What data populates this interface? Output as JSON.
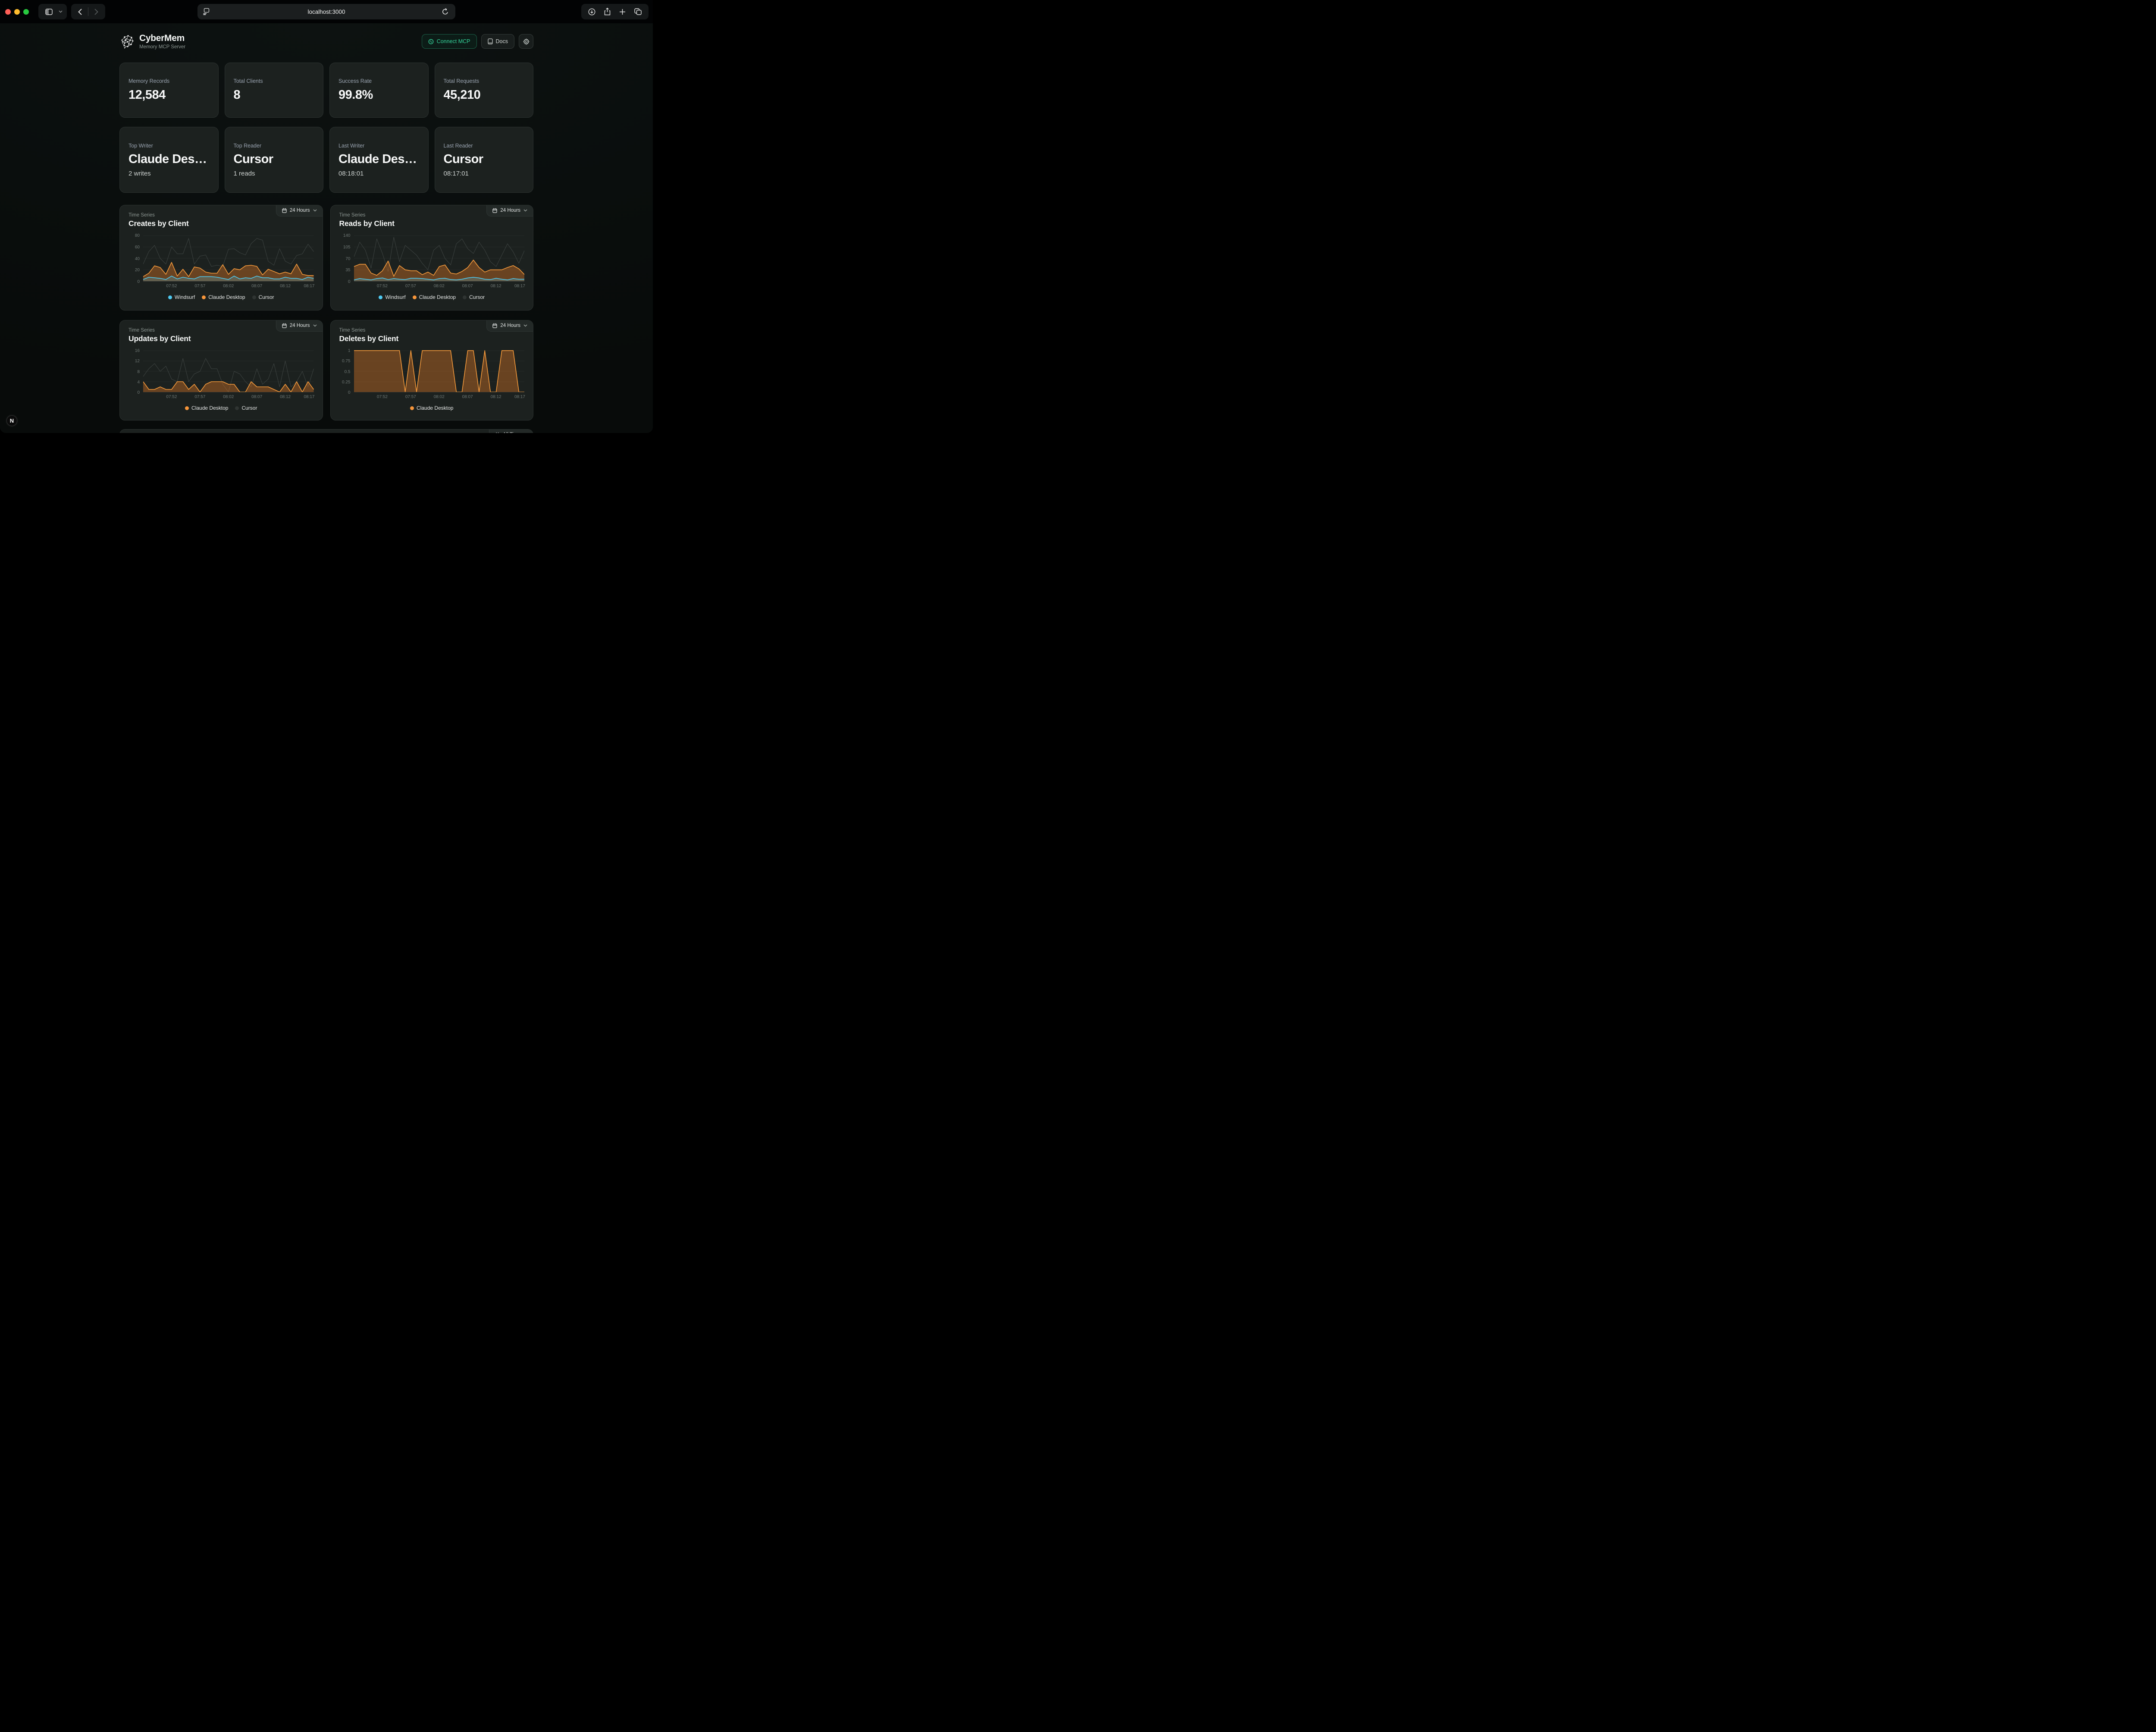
{
  "browser": {
    "url": "localhost:3000",
    "traffic_lights": {
      "close": "#ff5f57",
      "minimize": "#febc2e",
      "zoom": "#28c840"
    }
  },
  "header": {
    "app_name": "CyberMem",
    "subtitle": "Memory MCP Server",
    "connect_label": "Connect MCP",
    "docs_label": "Docs",
    "accent_green": "#35d69c"
  },
  "stats": [
    {
      "label": "Memory Records",
      "value": "12,584"
    },
    {
      "label": "Total Clients",
      "value": "8"
    },
    {
      "label": "Success Rate",
      "value": "99.8%"
    },
    {
      "label": "Total Requests",
      "value": "45,210"
    }
  ],
  "highlights": [
    {
      "label": "Top Writer",
      "value": "Claude Des…",
      "sub": "2 writes"
    },
    {
      "label": "Top Reader",
      "value": "Cursor",
      "sub": "1 reads"
    },
    {
      "label": "Last Writer",
      "value": "Claude Des…",
      "sub": "08:18:01"
    },
    {
      "label": "Last Reader",
      "value": "Cursor",
      "sub": "08:17:01"
    }
  ],
  "bottom_panel": {
    "range_label": "All Time"
  },
  "next_badge_label": "N",
  "series_colors": {
    "windsurf": "#4ec9f0",
    "claude_desktop": "#f59a3c",
    "cursor": "#3d4341",
    "claude_fill": "rgba(222,120,38,0.40)",
    "windsurf_fill": "rgba(78,201,240,0.22)"
  },
  "charts": [
    {
      "type": "area",
      "eyebrow": "Time Series",
      "title": "Creates by Client",
      "range_label": "24 Hours",
      "y_max": 80,
      "y_ticks": [
        0,
        20,
        40,
        60,
        80
      ],
      "x_ticks": [
        "07:52",
        "07:57",
        "08:02",
        "08:07",
        "08:12",
        "08:17"
      ],
      "legend": [
        {
          "label": "Windsurf",
          "color": "#4ec9f0"
        },
        {
          "label": "Claude Desktop",
          "color": "#f6953a"
        },
        {
          "label": "Cursor",
          "color": "#2f3432"
        }
      ],
      "series": [
        {
          "name": "Cursor",
          "color": "#3d4341",
          "width": 1,
          "fill": null,
          "values": [
            30,
            52,
            63,
            40,
            30,
            60,
            48,
            48,
            75,
            30,
            44,
            46,
            26,
            28,
            26,
            56,
            57,
            50,
            46,
            66,
            75,
            72,
            35,
            28,
            57,
            35,
            30,
            45,
            48,
            65,
            52
          ]
        },
        {
          "name": "Claude Desktop",
          "color": "#f59a3c",
          "width": 1.6,
          "fill": "rgba(222,120,38,0.40)",
          "values": [
            8,
            14,
            27,
            24,
            12,
            33,
            9,
            21,
            8,
            25,
            23,
            16,
            14,
            14,
            29,
            12,
            22,
            20,
            27,
            28,
            26,
            11,
            21,
            17,
            13,
            16,
            13,
            30,
            12,
            10,
            10
          ]
        },
        {
          "name": "Windsurf",
          "color": "#4ec9f0",
          "width": 1.6,
          "fill": "rgba(78,201,240,0.22)",
          "values": [
            3,
            7,
            6,
            5,
            3,
            9,
            4,
            7,
            5,
            4,
            8,
            8,
            8,
            7,
            5,
            3,
            9,
            4,
            6,
            5,
            9,
            6,
            6,
            4,
            4,
            7,
            5,
            5,
            3,
            7,
            5
          ]
        }
      ]
    },
    {
      "type": "area",
      "eyebrow": "Time Series",
      "title": "Reads by Client",
      "range_label": "24 Hours",
      "y_max": 140,
      "y_ticks": [
        0,
        35,
        70,
        105,
        140
      ],
      "x_ticks": [
        "07:52",
        "07:57",
        "08:02",
        "08:07",
        "08:12",
        "08:17"
      ],
      "legend": [
        {
          "label": "Windsurf",
          "color": "#4ec9f0"
        },
        {
          "label": "Claude Desktop",
          "color": "#f6953a"
        },
        {
          "label": "Cursor",
          "color": "#2f3432"
        }
      ],
      "series": [
        {
          "name": "Cursor",
          "color": "#3d4341",
          "width": 1,
          "fill": null,
          "values": [
            75,
            120,
            95,
            40,
            130,
            85,
            30,
            135,
            60,
            110,
            95,
            80,
            55,
            35,
            95,
            110,
            70,
            50,
            115,
            130,
            100,
            85,
            120,
            95,
            60,
            45,
            80,
            115,
            90,
            55,
            95
          ]
        },
        {
          "name": "Claude Desktop",
          "color": "#f59a3c",
          "width": 1.6,
          "fill": "rgba(222,120,38,0.40)",
          "values": [
            45,
            52,
            52,
            25,
            18,
            32,
            62,
            15,
            48,
            35,
            32,
            32,
            20,
            28,
            18,
            45,
            50,
            25,
            22,
            30,
            42,
            65,
            42,
            28,
            35,
            35,
            35,
            42,
            48,
            38,
            20
          ]
        },
        {
          "name": "Windsurf",
          "color": "#4ec9f0",
          "width": 1.6,
          "fill": "rgba(78,201,240,0.22)",
          "values": [
            4,
            8,
            6,
            4,
            8,
            10,
            5,
            8,
            6,
            5,
            9,
            9,
            8,
            6,
            4,
            8,
            9,
            5,
            4,
            6,
            10,
            12,
            10,
            6,
            5,
            9,
            6,
            4,
            8,
            6,
            6
          ]
        }
      ]
    },
    {
      "type": "area",
      "eyebrow": "Time Series",
      "title": "Updates by Client",
      "range_label": "24 Hours",
      "y_max": 16,
      "y_ticks": [
        0,
        4,
        8,
        12,
        16
      ],
      "x_ticks": [
        "07:52",
        "07:57",
        "08:02",
        "08:07",
        "08:12",
        "08:17"
      ],
      "legend": [
        {
          "label": "Claude Desktop",
          "color": "#f6953a"
        },
        {
          "label": "Cursor",
          "color": "#2f3432"
        }
      ],
      "series": [
        {
          "name": "Cursor",
          "color": "#3d4341",
          "width": 1,
          "fill": null,
          "values": [
            6,
            9,
            11,
            8,
            10,
            5,
            4,
            13,
            4,
            7,
            8,
            13,
            9,
            9,
            3,
            0,
            8,
            7,
            4,
            2,
            9,
            3,
            5,
            11,
            2,
            12,
            2,
            4,
            8,
            2,
            9
          ]
        },
        {
          "name": "Claude Desktop",
          "color": "#f59a3c",
          "width": 1.6,
          "fill": "rgba(222,120,38,0.40)",
          "values": [
            4,
            1,
            1,
            2,
            1,
            1,
            4,
            4,
            1,
            3,
            0,
            3,
            4,
            4,
            4,
            3,
            3,
            0,
            0,
            4,
            2,
            2,
            2,
            1,
            0,
            3,
            0,
            4,
            0,
            4,
            1
          ]
        }
      ]
    },
    {
      "type": "area",
      "eyebrow": "Time Series",
      "title": "Deletes by Client",
      "range_label": "24 Hours",
      "y_max": 1,
      "y_ticks": [
        0,
        0.25,
        0.5,
        0.75,
        1
      ],
      "x_ticks": [
        "07:52",
        "07:57",
        "08:02",
        "08:07",
        "08:12",
        "08:17"
      ],
      "legend": [
        {
          "label": "Claude Desktop",
          "color": "#f6953a"
        }
      ],
      "series": [
        {
          "name": "Claude Desktop",
          "color": "#f59a3c",
          "width": 1.6,
          "fill": "rgba(222,120,38,0.40)",
          "values": [
            1,
            1,
            1,
            1,
            1,
            1,
            1,
            1,
            1,
            0,
            1,
            0,
            1,
            1,
            1,
            1,
            1,
            1,
            0,
            0,
            1,
            1,
            0,
            1,
            0,
            0,
            1,
            1,
            1,
            0,
            0
          ]
        }
      ]
    }
  ]
}
